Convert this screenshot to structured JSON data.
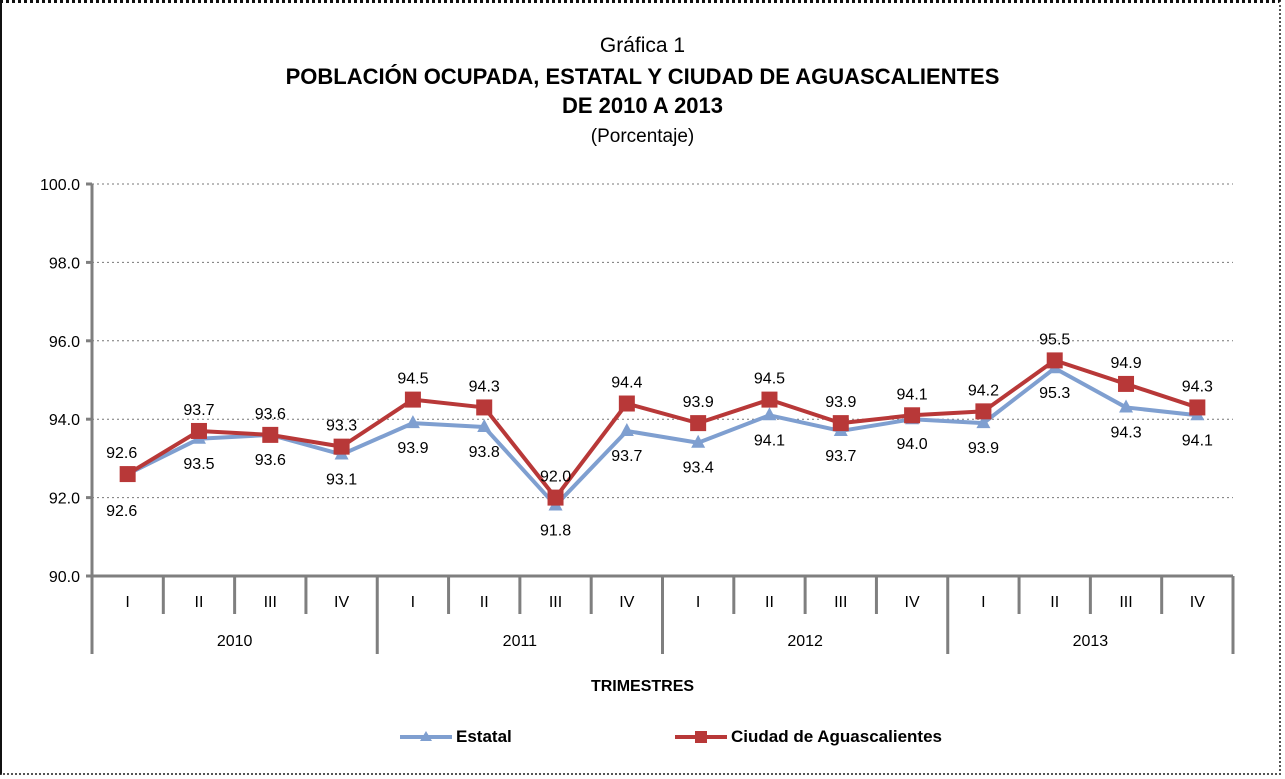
{
  "chart_data": {
    "type": "line",
    "title": "POBLACIÓN OCUPADA, ESTATAL Y CIUDAD DE AGUASCALIENTES DE 2010 A 2013",
    "subtitle_top": "Gráfica 1",
    "title_line1": "POBLACIÓN OCUPADA, ESTATAL Y CIUDAD DE AGUASCALIENTES",
    "title_line2": "DE 2010 A 2013",
    "unit": "(Porcentaje)",
    "xlabel": "TRIMESTRES",
    "ylabel": "",
    "ylim": [
      90.0,
      100.0
    ],
    "yticks": [
      "90.0",
      "92.0",
      "94.0",
      "96.0",
      "98.0",
      "100.0"
    ],
    "ytick_values": [
      90,
      92,
      94,
      96,
      98,
      100
    ],
    "grid": true,
    "categories": [
      "I",
      "II",
      "III",
      "IV",
      "I",
      "II",
      "III",
      "IV",
      "I",
      "II",
      "III",
      "IV",
      "I",
      "II",
      "III",
      "IV"
    ],
    "groups": [
      {
        "label": "2010",
        "span": 4
      },
      {
        "label": "2011",
        "span": 4
      },
      {
        "label": "2012",
        "span": 4
      },
      {
        "label": "2013",
        "span": 4
      }
    ],
    "series": [
      {
        "name": "Estatal",
        "color": "#7f9fd0",
        "marker": "triangle",
        "values": [
          92.6,
          93.5,
          93.6,
          93.1,
          93.9,
          93.8,
          91.8,
          93.7,
          93.4,
          94.1,
          93.7,
          94.0,
          93.9,
          95.3,
          94.3,
          94.1
        ],
        "labels": [
          "92.6",
          "93.5",
          "93.6",
          "93.1",
          "93.9",
          "93.8",
          "91.8",
          "93.7",
          "93.4",
          "94.1",
          "93.7",
          "94.0",
          "93.9",
          "95.3",
          "94.3",
          "94.1"
        ]
      },
      {
        "name": "Ciudad de Aguascalientes",
        "color": "#b83838",
        "marker": "square",
        "values": [
          92.6,
          93.7,
          93.6,
          93.3,
          94.5,
          94.3,
          92.0,
          94.4,
          93.9,
          94.5,
          93.9,
          94.1,
          94.2,
          95.5,
          94.9,
          94.3
        ],
        "labels": [
          "92.6",
          "93.7",
          "93.6",
          "93.3",
          "94.5",
          "94.3",
          "92.0",
          "94.4",
          "93.9",
          "94.5",
          "93.9",
          "94.1",
          "94.2",
          "95.5",
          "94.9",
          "94.3"
        ]
      }
    ],
    "legend_position": "bottom"
  }
}
